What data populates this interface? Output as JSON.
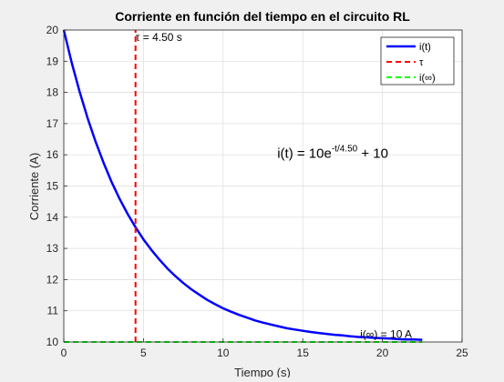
{
  "chart_data": {
    "type": "line",
    "title": "Corriente en función del tiempo en el circuito RL",
    "xlabel": "Tiempo (s)",
    "ylabel": "Corriente (A)",
    "xlim": [
      0,
      25
    ],
    "ylim": [
      10,
      20
    ],
    "xticks": [
      0,
      5,
      10,
      15,
      20,
      25
    ],
    "yticks": [
      10,
      11,
      12,
      13,
      14,
      15,
      16,
      17,
      18,
      19,
      20
    ],
    "xtick_labels": [
      "0",
      "5",
      "10",
      "15",
      "20",
      "25"
    ],
    "ytick_labels": [
      "10",
      "11",
      "12",
      "13",
      "14",
      "15",
      "16",
      "17",
      "18",
      "19",
      "20"
    ],
    "grid": true,
    "legend_position": "top-right",
    "series": [
      {
        "name": "i(t)",
        "style": "solid",
        "color": "#0000ff",
        "x": [
          0,
          0.5,
          1,
          1.5,
          2,
          2.5,
          3,
          3.5,
          4,
          4.5,
          5,
          5.5,
          6,
          6.5,
          7,
          7.5,
          8,
          8.5,
          9,
          9.5,
          10,
          10.5,
          11,
          11.5,
          12,
          12.5,
          13,
          13.5,
          14,
          14.5,
          15,
          15.5,
          16,
          16.5,
          17,
          17.5,
          18,
          18.5,
          19,
          19.5,
          20,
          20.5,
          21,
          21.5,
          22,
          22.5
        ],
        "y": [
          20.0,
          18.95,
          18.01,
          17.17,
          16.41,
          15.74,
          15.13,
          14.59,
          14.11,
          13.68,
          13.29,
          12.95,
          12.64,
          12.36,
          12.11,
          11.89,
          11.69,
          11.52,
          11.35,
          11.21,
          11.08,
          10.97,
          10.87,
          10.78,
          10.69,
          10.62,
          10.56,
          10.5,
          10.44,
          10.4,
          10.36,
          10.32,
          10.29,
          10.26,
          10.23,
          10.21,
          10.18,
          10.16,
          10.15,
          10.13,
          10.12,
          10.11,
          10.09,
          10.08,
          10.08,
          10.07
        ]
      },
      {
        "name": "τ",
        "style": "dashed",
        "color": "#ff0000",
        "x": [
          4.5,
          4.5
        ],
        "y": [
          10,
          20
        ]
      },
      {
        "name": "i(∞)",
        "style": "dashed",
        "color": "#00ff00",
        "x": [
          0,
          22.5
        ],
        "y": [
          10,
          10
        ]
      }
    ],
    "annotations": [
      {
        "id": "tau",
        "text": "τ = 4.50 s",
        "x": 4.5,
        "y": 19.65
      },
      {
        "id": "iinf",
        "text": "i(∞) = 10 A",
        "x": 18.6,
        "y": 10.13
      }
    ],
    "formula": {
      "base": "i(t) = 10e",
      "exponent": "-t/4.50",
      "tail": " + 10",
      "x": 13.4,
      "y": 15.9
    }
  }
}
